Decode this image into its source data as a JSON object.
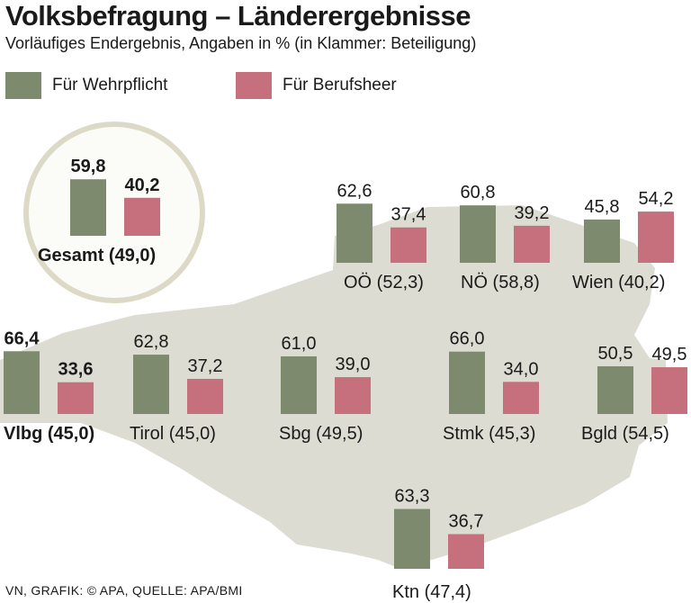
{
  "title": "Volksbefragung – Länderergebnisse",
  "subtitle": "Vorläufiges Endergebnis, Angaben in % (in Klammer: Beteiligung)",
  "footer": "VN, GRAFIK: © APA, QUELLE: APA/BMI",
  "colors": {
    "wehrpflicht": "#7d8a6e",
    "berufsheer": "#c5707c",
    "map": "#dcdcd3",
    "circle_bg": "#fbfbf7",
    "circle_border": "#dcdac6"
  },
  "chart_data": {
    "type": "bar",
    "unit": "%",
    "series": [
      {
        "name": "Für Wehrpflicht",
        "key": "wehrpflicht"
      },
      {
        "name": "Für Berufsheer",
        "key": "berufsheer"
      }
    ],
    "regions": [
      {
        "id": "gesamt",
        "label": "Gesamt (49,0)",
        "wehrpflicht": 59.8,
        "berufsheer": 40.2,
        "wehrpflicht_label": "59,8",
        "berufsheer_label": "40,2",
        "bold": true
      },
      {
        "id": "ooe",
        "label": "OÖ (52,3)",
        "wehrpflicht": 62.6,
        "berufsheer": 37.4,
        "wehrpflicht_label": "62,6",
        "berufsheer_label": "37,4",
        "bold": false
      },
      {
        "id": "noe",
        "label": "NÖ (58,8)",
        "wehrpflicht": 60.8,
        "berufsheer": 39.2,
        "wehrpflicht_label": "60,8",
        "berufsheer_label": "39,2",
        "bold": false
      },
      {
        "id": "wien",
        "label": "Wien (40,2)",
        "wehrpflicht": 45.8,
        "berufsheer": 54.2,
        "wehrpflicht_label": "45,8",
        "berufsheer_label": "54,2",
        "bold": false
      },
      {
        "id": "vlbg",
        "label": "Vlbg (45,0)",
        "wehrpflicht": 66.4,
        "berufsheer": 33.6,
        "wehrpflicht_label": "66,4",
        "berufsheer_label": "33,6",
        "bold": true
      },
      {
        "id": "tirol",
        "label": "Tirol (45,0)",
        "wehrpflicht": 62.8,
        "berufsheer": 37.2,
        "wehrpflicht_label": "62,8",
        "berufsheer_label": "37,2",
        "bold": false
      },
      {
        "id": "sbg",
        "label": "Sbg (49,5)",
        "wehrpflicht": 61.0,
        "berufsheer": 39.0,
        "wehrpflicht_label": "61,0",
        "berufsheer_label": "39,0",
        "bold": false
      },
      {
        "id": "stmk",
        "label": "Stmk (45,3)",
        "wehrpflicht": 66.0,
        "berufsheer": 34.0,
        "wehrpflicht_label": "66,0",
        "berufsheer_label": "34,0",
        "bold": false
      },
      {
        "id": "bgld",
        "label": "Bgld (54,5)",
        "wehrpflicht": 50.5,
        "berufsheer": 49.5,
        "wehrpflicht_label": "50,5",
        "berufsheer_label": "49,5",
        "bold": false
      },
      {
        "id": "ktn",
        "label": "Ktn (47,4)",
        "wehrpflicht": 63.3,
        "berufsheer": 36.7,
        "wehrpflicht_label": "63,3",
        "berufsheer_label": "36,7",
        "bold": false
      }
    ]
  }
}
